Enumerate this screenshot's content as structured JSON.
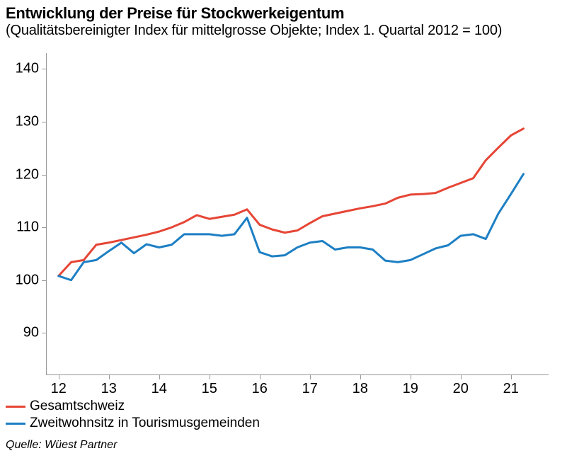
{
  "title": "Entwicklung der Preise für Stockwerkeigentum",
  "subtitle": "(Qualitätsbereinigter Index für mittelgrosse Objekte; Index 1. Quartal 2012 = 100)",
  "source": "Quelle: Wüest Partner",
  "chart": {
    "type": "line",
    "background_color": "#ffffff",
    "axis_color": "#999999",
    "text_color": "#000000",
    "tick_fontsize": 20,
    "title_fontsize": 22,
    "subtitle_fontsize": 20,
    "line_width": 3,
    "ylim": [
      82,
      143
    ],
    "yticks": [
      90,
      100,
      110,
      120,
      130,
      140
    ],
    "xlim": [
      2011.75,
      2021.75
    ],
    "xticks": [
      12,
      13,
      14,
      15,
      16,
      17,
      18,
      19,
      20,
      21
    ],
    "x_values": [
      2012.0,
      2012.25,
      2012.5,
      2012.75,
      2013.0,
      2013.25,
      2013.5,
      2013.75,
      2014.0,
      2014.25,
      2014.5,
      2014.75,
      2015.0,
      2015.25,
      2015.5,
      2015.75,
      2016.0,
      2016.25,
      2016.5,
      2016.75,
      2017.0,
      2017.25,
      2017.5,
      2017.75,
      2018.0,
      2018.25,
      2018.5,
      2018.75,
      2019.0,
      2019.25,
      2019.5,
      2019.75,
      2020.0,
      2020.25,
      2020.5,
      2020.75,
      2021.0,
      2021.25
    ],
    "series": [
      {
        "name": "Gesamtschweiz",
        "color": "#e64535",
        "values": [
          100.8,
          103.4,
          103.8,
          106.7,
          107.1,
          107.6,
          108.1,
          108.6,
          109.2,
          110.0,
          111.0,
          112.3,
          111.6,
          112.0,
          112.4,
          113.4,
          110.5,
          109.6,
          109.0,
          109.4,
          110.8,
          112.1,
          112.6,
          113.1,
          113.6,
          114.0,
          114.5,
          115.6,
          116.2,
          116.3,
          116.5,
          117.5,
          118.4,
          119.3,
          122.7,
          125.1,
          127.4,
          128.7
        ]
      },
      {
        "name": "Zweitwohnsitz in Tourismusgemeinden",
        "color": "#1d7fc4",
        "values": [
          100.8,
          100.0,
          103.4,
          103.8,
          105.5,
          107.1,
          105.1,
          106.8,
          106.2,
          106.7,
          108.7,
          108.7,
          108.7,
          108.4,
          108.7,
          111.8,
          105.3,
          104.5,
          104.7,
          106.2,
          107.1,
          107.4,
          105.8,
          106.2,
          106.2,
          105.8,
          103.7,
          103.4,
          103.8,
          104.9,
          106.0,
          106.6,
          108.4,
          108.7,
          107.8,
          112.6,
          116.3,
          120.1
        ]
      }
    ]
  },
  "legend": {
    "items": [
      {
        "label": "Gesamtschweiz",
        "color": "#e64535"
      },
      {
        "label": "Zweitwohnsitz in Tourismusgemeinden",
        "color": "#1d7fc4"
      }
    ]
  }
}
